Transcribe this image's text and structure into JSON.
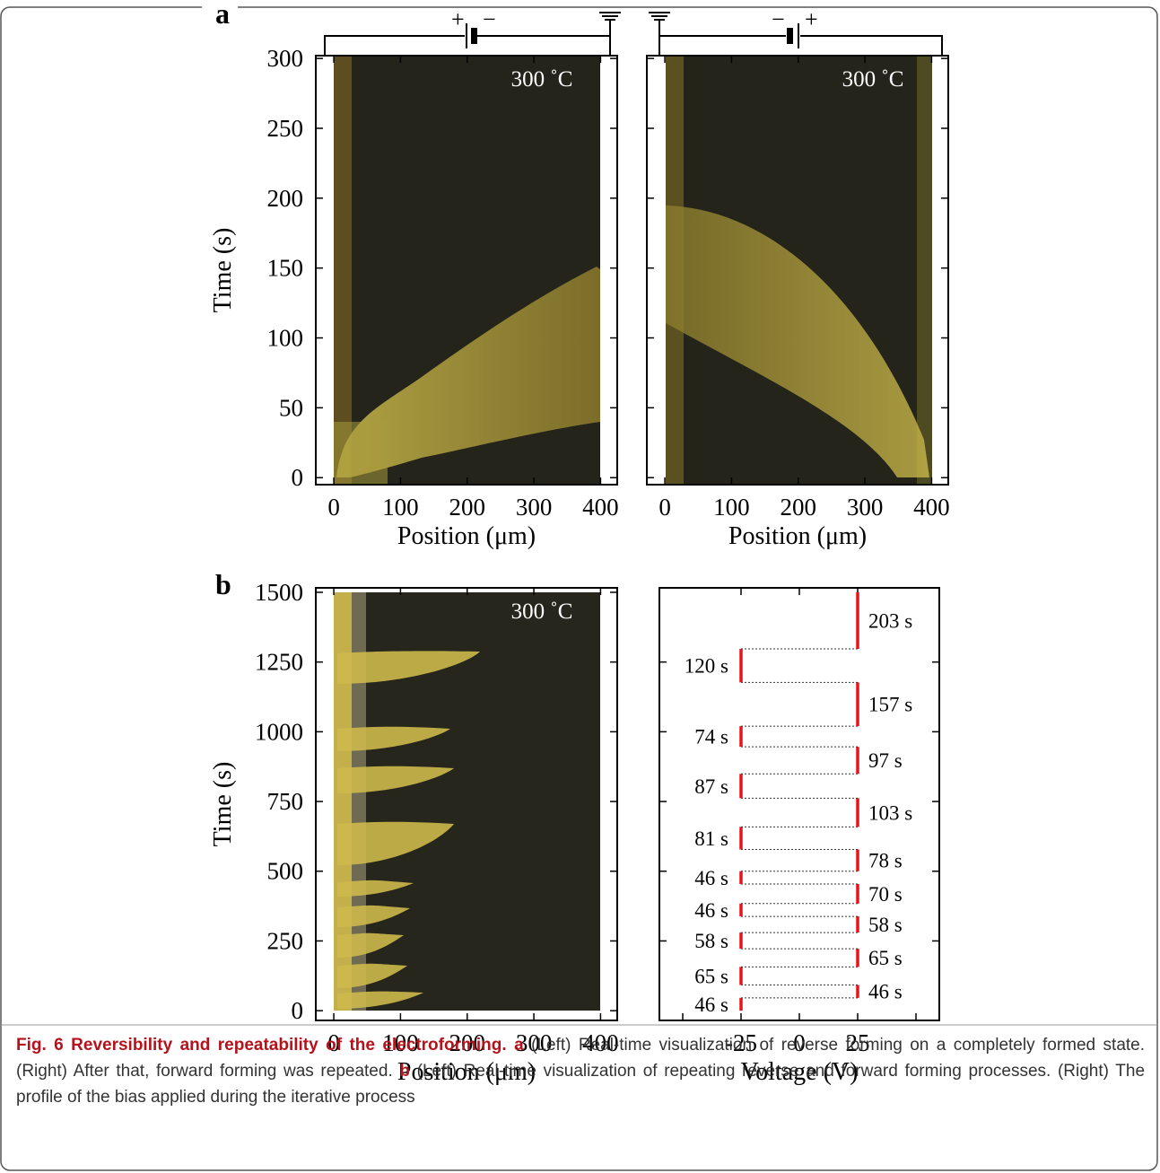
{
  "panel_a": {
    "label": "a",
    "temperature": "300 ˚C",
    "y_label": "Time (s)",
    "x_label": "Position (μm)",
    "xlim": [
      -27,
      425
    ],
    "ylim": [
      -5,
      302
    ],
    "xticks": [
      0,
      100,
      200,
      300,
      400
    ],
    "yticks": [
      0,
      50,
      100,
      150,
      200,
      250,
      300
    ],
    "left_circuit": {
      "positive": "+",
      "negative": "−"
    },
    "right_circuit": {
      "negative": "−",
      "positive": "+"
    }
  },
  "panel_b": {
    "label": "b",
    "image": {
      "temperature": "300 ˚C",
      "y_label": "Time (s)",
      "x_label": "Position (μm)",
      "xlim": [
        -27,
        425
      ],
      "ylim": [
        -35,
        1516
      ],
      "xticks": [
        0,
        100,
        200,
        300,
        400
      ],
      "yticks": [
        0,
        250,
        500,
        750,
        1000,
        1250,
        1500
      ]
    },
    "profile": {
      "x_label": "Voltage (V)",
      "xlim": [
        -60,
        60
      ],
      "xticks": [
        -25,
        0,
        25
      ],
      "minor_xticks": [
        -50,
        50
      ],
      "ylim": [
        -35,
        1516
      ],
      "yticks": [
        250,
        500,
        750,
        1000,
        1250
      ],
      "color": "#e8141b",
      "segments": [
        {
          "voltage": -25,
          "duration": 46,
          "label": "46 s"
        },
        {
          "voltage": 25,
          "duration": 46,
          "label": "46 s"
        },
        {
          "voltage": -25,
          "duration": 65,
          "label": "65 s"
        },
        {
          "voltage": 25,
          "duration": 65,
          "label": "65 s"
        },
        {
          "voltage": -25,
          "duration": 58,
          "label": "58 s"
        },
        {
          "voltage": 25,
          "duration": 58,
          "label": "58 s"
        },
        {
          "voltage": -25,
          "duration": 46,
          "label": "46 s"
        },
        {
          "voltage": 25,
          "duration": 70,
          "label": "70 s"
        },
        {
          "voltage": -25,
          "duration": 46,
          "label": "46 s"
        },
        {
          "voltage": 25,
          "duration": 78,
          "label": "78 s"
        },
        {
          "voltage": -25,
          "duration": 81,
          "label": "81 s"
        },
        {
          "voltage": 25,
          "duration": 103,
          "label": "103 s"
        },
        {
          "voltage": -25,
          "duration": 87,
          "label": "87 s"
        },
        {
          "voltage": 25,
          "duration": 97,
          "label": "97 s"
        },
        {
          "voltage": -25,
          "duration": 74,
          "label": "74 s"
        },
        {
          "voltage": 25,
          "duration": 157,
          "label": "157 s"
        },
        {
          "voltage": -25,
          "duration": 120,
          "label": "120 s"
        },
        {
          "voltage": 25,
          "duration": 203,
          "label": "203 s"
        }
      ]
    }
  },
  "caption": {
    "title": "Fig. 6 Reversibility and repeatability of the electroforming.",
    "parts": [
      {
        "label": "a",
        "text": "(Left) Real-time visualization of reverse forming on a completely formed state. (Right) After that, forward forming was repeated."
      },
      {
        "label": "b",
        "text": "(Left) Real-time visualization of repeating reverse and forward forming processes. (Right) The profile of the bias applied during the iterative process"
      }
    ]
  }
}
